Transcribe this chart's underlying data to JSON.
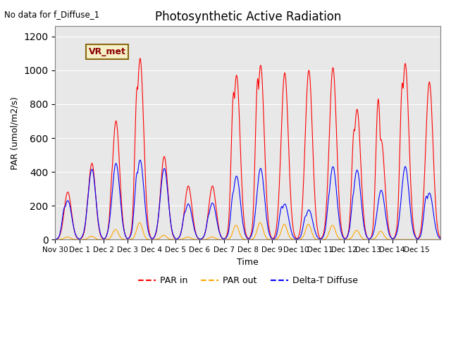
{
  "title": "Photosynthetic Active Radiation",
  "xlabel": "Time",
  "ylabel": "PAR (umol/m2/s)",
  "annotation": "No data for f_Diffuse_1",
  "legend_label": "VR_met",
  "ylim": [
    0,
    1260
  ],
  "xlim": [
    0,
    16
  ],
  "series_labels": [
    "PAR in",
    "PAR out",
    "Delta-T Diffuse"
  ],
  "series_colors": [
    "red",
    "orange",
    "blue"
  ],
  "background_color": "#e8e8e8",
  "tick_positions": [
    0,
    1,
    2,
    3,
    4,
    5,
    6,
    7,
    8,
    9,
    10,
    11,
    12,
    13,
    14,
    15
  ],
  "tick_labels": [
    "Nov 30",
    "Dec 1",
    "Dec 2",
    "Dec 3",
    "Dec 4",
    "Dec 5",
    "Dec 6",
    "Dec 7",
    "Dec 8",
    "Dec 9",
    "Dec 10",
    "Dec 11",
    "Dec 12",
    "Dec 13",
    "Dec 14",
    "Dec 15"
  ],
  "n_days": 16,
  "par_in_peaks": [
    280,
    450,
    700,
    1070,
    490,
    315,
    315,
    970,
    1030,
    985,
    1000,
    1015,
    770,
    590,
    1040,
    930
  ],
  "par_in_peaks2": [
    50,
    280,
    450,
    900,
    270,
    100,
    100,
    870,
    950,
    200,
    130,
    0,
    650,
    830,
    925,
    0
  ],
  "par_out_peaks": [
    15,
    20,
    60,
    100,
    25,
    15,
    15,
    85,
    100,
    90,
    90,
    85,
    55,
    50,
    0,
    0
  ],
  "delta_t_peaks": [
    230,
    415,
    450,
    470,
    420,
    210,
    215,
    375,
    420,
    210,
    175,
    430,
    410,
    290,
    430,
    275
  ],
  "delta_t_peaks2": [
    195,
    240,
    250,
    395,
    200,
    165,
    155,
    285,
    200,
    195,
    140,
    290,
    285,
    150,
    260,
    255
  ],
  "steps_per_day": 48
}
